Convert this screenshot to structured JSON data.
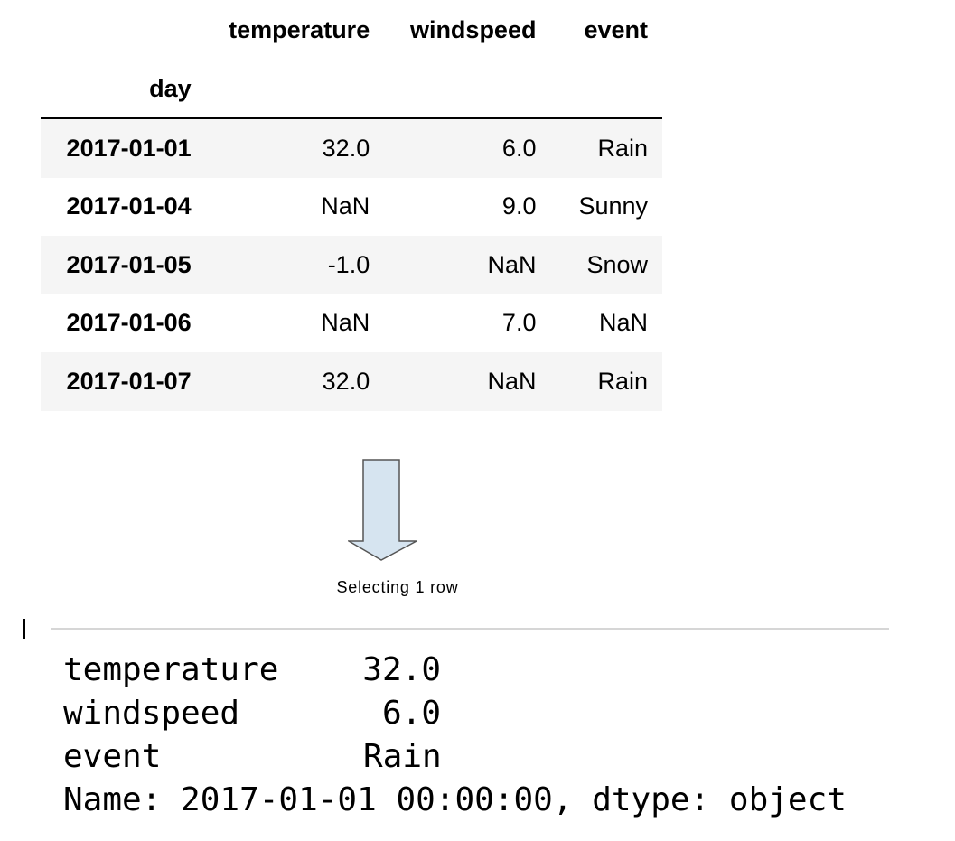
{
  "table": {
    "columns": [
      "temperature",
      "windspeed",
      "event"
    ],
    "index_name": "day",
    "rows": [
      {
        "day": "2017-01-01",
        "temperature": "32.0",
        "windspeed": "6.0",
        "event": "Rain"
      },
      {
        "day": "2017-01-04",
        "temperature": "NaN",
        "windspeed": "9.0",
        "event": "Sunny"
      },
      {
        "day": "2017-01-05",
        "temperature": "-1.0",
        "windspeed": "NaN",
        "event": "Snow"
      },
      {
        "day": "2017-01-06",
        "temperature": "NaN",
        "windspeed": "7.0",
        "event": "NaN"
      },
      {
        "day": "2017-01-07",
        "temperature": "32.0",
        "windspeed": "NaN",
        "event": "Rain"
      }
    ]
  },
  "arrow": {
    "caption": "Selecting 1 row",
    "fill_color": "#d6e4f0",
    "stroke_color": "#555555"
  },
  "output": {
    "lines": [
      {
        "key": "temperature",
        "value": "32.0"
      },
      {
        "key": "windspeed",
        "value": "6.0"
      },
      {
        "key": "event",
        "value": "Rain"
      }
    ],
    "footer": "Name: 2017-01-01 00:00:00, dtype: object"
  }
}
